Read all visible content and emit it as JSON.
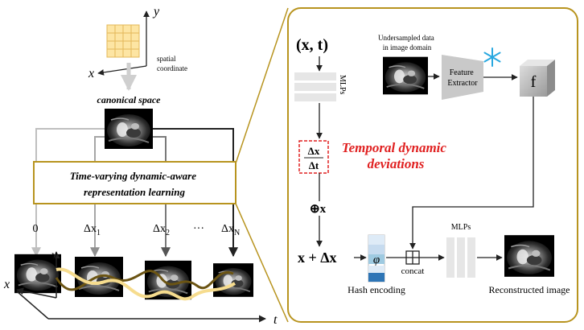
{
  "left_panel": {
    "axis_y": "y",
    "axis_x": "x",
    "spatial_label": [
      "spatial",
      "coordinate"
    ],
    "canonical_label": "canonical space",
    "box_label": [
      "Time-varying dynamic-aware",
      "representation learning"
    ],
    "branch_labels": [
      {
        "main": "0",
        "sub": ""
      },
      {
        "main": "Δx",
        "sub": "1"
      },
      {
        "main": "Δx",
        "sub": "2"
      },
      {
        "main": "···",
        "sub": ""
      },
      {
        "main": "Δx",
        "sub": "N"
      }
    ],
    "stack_axis_y": "y",
    "stack_axis_x": "x",
    "time_axis": "t"
  },
  "right_panel": {
    "input_coord": "(x, t)",
    "mlp_label": "MLPs",
    "undersampled_label": [
      "Undersampled data",
      "in image domain"
    ],
    "extractor_label": [
      "Feature",
      "Extractor"
    ],
    "feature_symbol": "f",
    "delta_num": "Δx",
    "delta_den": "Δt",
    "temporal_label": [
      "Temporal dynamic",
      "deviations"
    ],
    "oplus_label": "⊕x",
    "sum_label": "x + Δx",
    "phi_label": "φ",
    "hash_label": "Hash encoding",
    "concat_label": "concat",
    "mlp2_label": "MLPs",
    "recon_label": "Reconstructed image"
  },
  "colors": {
    "frame": "#b8941f",
    "accent_red": "#e02020",
    "grid_fill": "#fde5a3",
    "grid_line": "#e3b85a",
    "arrow_light": "#bfbfbf",
    "arrow_mid": "#8f8f8f",
    "arrow_dark": "#555555",
    "curve_light": "#f6dc8e",
    "curve_dark": "#6b5413",
    "hash_blue": "#2e75b6"
  }
}
